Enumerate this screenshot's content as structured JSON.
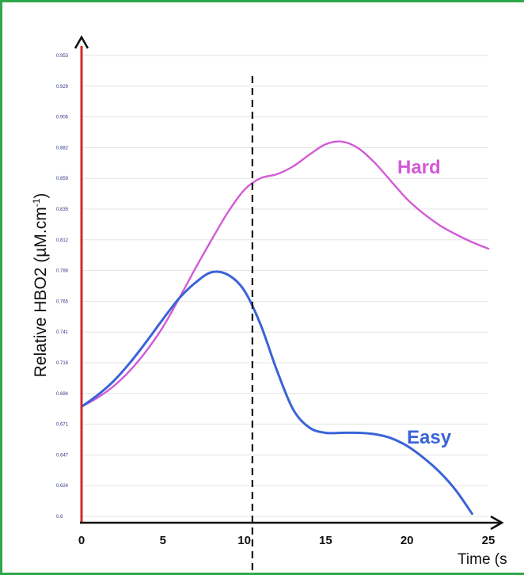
{
  "chart_data": {
    "type": "line",
    "xlabel": "Time (s",
    "ylabel_main": "Relative HBO2 (µM.cm",
    "ylabel_sup": "-1",
    "ylabel_close": ")",
    "xlim": [
      0,
      25
    ],
    "ylim": [
      0.6,
      0.953
    ],
    "x_ticks": [
      "0",
      "5",
      "10",
      "15",
      "20",
      "25"
    ],
    "y_ticks": [
      "0.953",
      "0.929",
      "0.906",
      "0.882",
      "0.859",
      "0.835",
      "0.812",
      "0.788",
      "0.765",
      "0.741",
      "0.718",
      "0.694",
      "0.671",
      "0.647",
      "0.624",
      "0.6"
    ],
    "grid": true,
    "vertical_marker_x": 10.5,
    "series": [
      {
        "name": "Hard",
        "color": "#d35ad6",
        "x": [
          0,
          1,
          2,
          3,
          4,
          5,
          6,
          7,
          8,
          9,
          10,
          11,
          12,
          13,
          14,
          15,
          16,
          17,
          18,
          19,
          20,
          21,
          22,
          23,
          24,
          25
        ],
        "y": [
          0.684,
          0.691,
          0.7,
          0.712,
          0.727,
          0.745,
          0.767,
          0.79,
          0.812,
          0.833,
          0.85,
          0.859,
          0.862,
          0.868,
          0.877,
          0.885,
          0.887,
          0.882,
          0.871,
          0.857,
          0.843,
          0.832,
          0.823,
          0.816,
          0.81,
          0.805
        ]
      },
      {
        "name": "Easy",
        "color": "#3b63d8",
        "x": [
          0,
          1,
          2,
          3,
          4,
          5,
          6,
          7,
          8,
          9,
          10,
          11,
          12,
          13,
          14,
          15,
          16,
          17,
          18,
          19,
          20,
          21,
          22,
          23,
          24
        ],
        "y": [
          0.684,
          0.693,
          0.704,
          0.718,
          0.734,
          0.751,
          0.767,
          0.779,
          0.787,
          0.785,
          0.773,
          0.747,
          0.712,
          0.682,
          0.668,
          0.664,
          0.664,
          0.664,
          0.663,
          0.66,
          0.654,
          0.645,
          0.634,
          0.62,
          0.602
        ]
      }
    ]
  }
}
